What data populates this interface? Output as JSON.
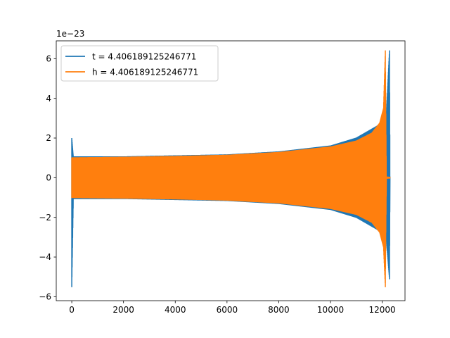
{
  "chart_data": {
    "type": "line",
    "title": "",
    "xlabel": "",
    "ylabel": "",
    "y_offset_label": "1e−23",
    "xlim": [
      -600,
      12880
    ],
    "ylim": [
      -6.2,
      6.9
    ],
    "x_ticks": [
      0,
      2000,
      4000,
      6000,
      8000,
      10000,
      12000
    ],
    "x_tick_labels": [
      "0",
      "2000",
      "4000",
      "6000",
      "8000",
      "10000",
      "12000"
    ],
    "y_ticks": [
      -6,
      -4,
      -2,
      0,
      2,
      4,
      6
    ],
    "y_tick_labels": [
      "−6",
      "−4",
      "−2",
      "0",
      "2",
      "4",
      "6"
    ],
    "grid": false,
    "legend_position": "top-left",
    "series": [
      {
        "name": "t = 4.406189125246771",
        "color": "#1f77b4",
        "envelope": [
          {
            "x": 0,
            "upper": 2.0,
            "lower": -5.5
          },
          {
            "x": 60,
            "upper": 1.05,
            "lower": -1.05
          },
          {
            "x": 2000,
            "upper": 1.05,
            "lower": -1.05
          },
          {
            "x": 4000,
            "upper": 1.1,
            "lower": -1.1
          },
          {
            "x": 6000,
            "upper": 1.15,
            "lower": -1.15
          },
          {
            "x": 8000,
            "upper": 1.3,
            "lower": -1.3
          },
          {
            "x": 10000,
            "upper": 1.6,
            "lower": -1.6
          },
          {
            "x": 11000,
            "upper": 2.0,
            "lower": -2.0
          },
          {
            "x": 11800,
            "upper": 2.6,
            "lower": -2.6
          },
          {
            "x": 12150,
            "upper": 3.0,
            "lower": -3.0
          },
          {
            "x": 12280,
            "upper": 6.4,
            "lower": -5.1
          },
          {
            "x": 12300,
            "upper": 0.05,
            "lower": -0.05
          }
        ]
      },
      {
        "name": "h = 4.406189125246771",
        "color": "#ff7f0e",
        "envelope": [
          {
            "x": 0,
            "upper": 1.0,
            "lower": -1.0
          },
          {
            "x": 2000,
            "upper": 1.03,
            "lower": -1.03
          },
          {
            "x": 4000,
            "upper": 1.07,
            "lower": -1.07
          },
          {
            "x": 6000,
            "upper": 1.13,
            "lower": -1.13
          },
          {
            "x": 8000,
            "upper": 1.27,
            "lower": -1.27
          },
          {
            "x": 10000,
            "upper": 1.55,
            "lower": -1.55
          },
          {
            "x": 11000,
            "upper": 1.85,
            "lower": -1.85
          },
          {
            "x": 11600,
            "upper": 2.25,
            "lower": -2.25
          },
          {
            "x": 11900,
            "upper": 2.75,
            "lower": -2.75
          },
          {
            "x": 12050,
            "upper": 3.5,
            "lower": -3.5
          },
          {
            "x": 12120,
            "upper": 6.4,
            "lower": -5.5
          },
          {
            "x": 12160,
            "upper": 0.03,
            "lower": -0.03
          },
          {
            "x": 12300,
            "upper": 0.02,
            "lower": -0.02
          }
        ]
      }
    ]
  }
}
